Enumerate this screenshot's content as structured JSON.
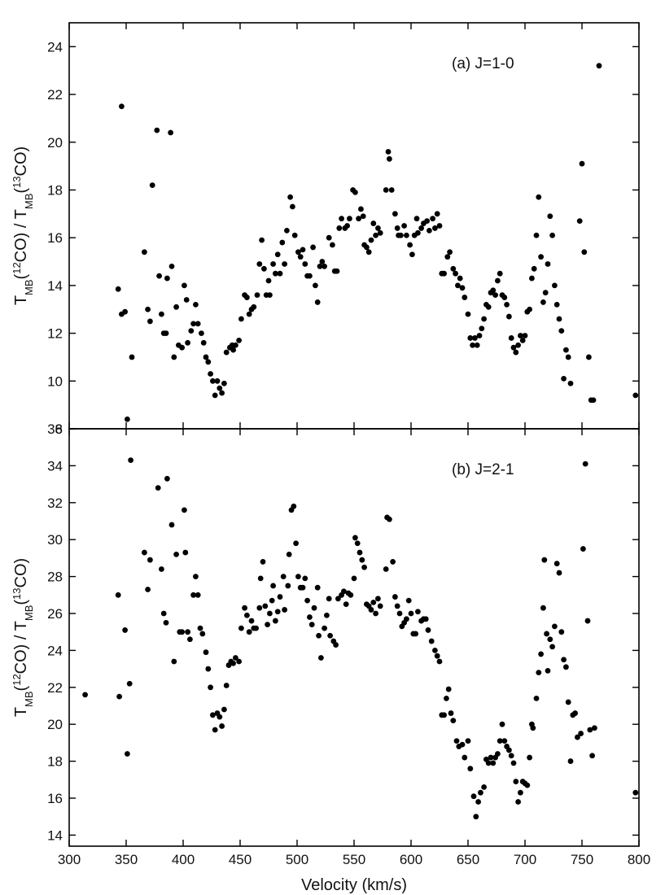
{
  "chart_data": [
    {
      "type": "scatter",
      "color": "#000000",
      "annotation": "(a) J=1-0",
      "ylabel": [
        {
          "text": "T"
        },
        {
          "text": "MB",
          "shift": "sub"
        },
        {
          "text": "("
        },
        {
          "text": "12",
          "shift": "super"
        },
        {
          "text": "CO)  /  T"
        },
        {
          "text": "MB",
          "shift": "sub"
        },
        {
          "text": "("
        },
        {
          "text": "13",
          "shift": "super"
        },
        {
          "text": "CO)"
        }
      ],
      "xlim": [
        300,
        800
      ],
      "xticks": [
        300,
        350,
        400,
        450,
        500,
        550,
        600,
        650,
        700,
        750,
        800
      ],
      "ylim": [
        8,
        25
      ],
      "yticks": [
        8,
        10,
        12,
        14,
        16,
        18,
        20,
        22,
        24
      ],
      "x": [
        343,
        346,
        346,
        349,
        351,
        355,
        366,
        369,
        371,
        373,
        377,
        379,
        381,
        383,
        385,
        386,
        389,
        390,
        392,
        394,
        396,
        399,
        401,
        403,
        404,
        407,
        409,
        411,
        413,
        416,
        418,
        420,
        422,
        424,
        426,
        428,
        430,
        432,
        434,
        436,
        438,
        441,
        443,
        444,
        446,
        449,
        451,
        454,
        456,
        458,
        460,
        462,
        465,
        467,
        469,
        471,
        473,
        475,
        476,
        479,
        481,
        483,
        485,
        487,
        489,
        491,
        494,
        496,
        498,
        501,
        503,
        505,
        507,
        509,
        511,
        514,
        516,
        518,
        520,
        522,
        524,
        528,
        531,
        533,
        535,
        537,
        539,
        542,
        544,
        546,
        549,
        551,
        554,
        556,
        558,
        559,
        561,
        563,
        565,
        567,
        569,
        571,
        573,
        578,
        580,
        581,
        583,
        586,
        588,
        589,
        591,
        594,
        596,
        599,
        601,
        603,
        605,
        606,
        609,
        611,
        614,
        616,
        619,
        621,
        623,
        625,
        627,
        629,
        632,
        634,
        637,
        639,
        641,
        643,
        645,
        647,
        650,
        652,
        654,
        656,
        658,
        660,
        662,
        664,
        666,
        668,
        670,
        672,
        674,
        676,
        678,
        680,
        682,
        684,
        686,
        688,
        690,
        692,
        694,
        696,
        698,
        700,
        702,
        704,
        706,
        708,
        710,
        712,
        714,
        716,
        718,
        720,
        722,
        724,
        726,
        728,
        730,
        732,
        734,
        736,
        738,
        740,
        748,
        750,
        752,
        756,
        758,
        760,
        765,
        797
      ],
      "y": [
        13.85,
        12.8,
        21.5,
        12.9,
        8.4,
        11.0,
        15.4,
        13.0,
        12.5,
        18.2,
        20.5,
        14.4,
        12.8,
        12.0,
        12.0,
        14.3,
        20.4,
        14.8,
        11.0,
        13.1,
        11.5,
        11.4,
        14.0,
        13.4,
        11.6,
        12.1,
        12.4,
        13.2,
        12.4,
        12.0,
        11.6,
        11.0,
        10.8,
        10.3,
        10.0,
        9.4,
        10.0,
        9.7,
        9.5,
        9.9,
        11.2,
        11.4,
        11.5,
        11.3,
        11.5,
        11.7,
        12.6,
        13.6,
        13.5,
        12.8,
        13.0,
        13.1,
        13.6,
        14.9,
        15.9,
        14.7,
        13.6,
        14.2,
        13.6,
        14.9,
        14.5,
        15.3,
        14.5,
        15.8,
        14.9,
        16.3,
        17.7,
        17.3,
        16.1,
        15.4,
        15.2,
        15.5,
        14.9,
        14.4,
        14.4,
        15.6,
        14.0,
        13.3,
        14.8,
        15.0,
        14.8,
        16.0,
        15.7,
        14.6,
        14.6,
        16.4,
        16.8,
        16.4,
        16.5,
        16.8,
        18.0,
        17.9,
        16.8,
        17.2,
        16.9,
        15.7,
        15.6,
        15.4,
        15.9,
        16.6,
        16.1,
        16.4,
        16.2,
        18.0,
        19.6,
        19.3,
        18.0,
        17.0,
        16.4,
        16.1,
        16.1,
        16.5,
        16.1,
        15.7,
        15.3,
        16.1,
        16.8,
        16.2,
        16.4,
        16.6,
        16.7,
        16.3,
        16.8,
        16.4,
        17.0,
        16.5,
        14.5,
        14.5,
        15.2,
        15.4,
        14.7,
        14.5,
        14.0,
        14.3,
        13.9,
        13.5,
        12.8,
        11.8,
        11.5,
        11.8,
        11.5,
        11.9,
        12.2,
        12.6,
        13.2,
        13.1,
        13.7,
        13.8,
        13.6,
        14.2,
        14.5,
        13.6,
        13.5,
        13.2,
        12.7,
        11.8,
        11.4,
        11.2,
        11.5,
        11.9,
        11.7,
        11.9,
        12.9,
        13.0,
        14.3,
        14.7,
        16.1,
        17.7,
        15.2,
        13.3,
        13.7,
        14.9,
        16.9,
        16.1,
        14.0,
        13.2,
        12.6,
        12.1,
        10.1,
        11.3,
        11.0,
        9.9,
        16.7,
        19.1,
        15.4,
        11.0,
        9.2,
        9.2,
        23.2,
        9.4
      ]
    },
    {
      "type": "scatter",
      "color": "#000000",
      "annotation": "(b) J=2-1",
      "xlabel": "Velocity   (km/s)",
      "ylabel": [
        {
          "text": "T"
        },
        {
          "text": "MB",
          "shift": "sub"
        },
        {
          "text": "("
        },
        {
          "text": "12",
          "shift": "super"
        },
        {
          "text": "CO)  /  T"
        },
        {
          "text": "MB",
          "shift": "sub"
        },
        {
          "text": "("
        },
        {
          "text": "13",
          "shift": "super"
        },
        {
          "text": "CO)"
        }
      ],
      "xlim": [
        300,
        800
      ],
      "xticks": [
        300,
        350,
        400,
        450,
        500,
        550,
        600,
        650,
        700,
        750,
        800
      ],
      "ylim": [
        13.4,
        36
      ],
      "yticks": [
        14,
        16,
        18,
        20,
        22,
        24,
        26,
        28,
        30,
        32,
        34,
        36
      ],
      "x": [
        314,
        343,
        344,
        349,
        351,
        353,
        354,
        366,
        369,
        371,
        378,
        381,
        383,
        385,
        386,
        390,
        392,
        394,
        397,
        399,
        401,
        402,
        404,
        406,
        409,
        411,
        413,
        415,
        417,
        420,
        422,
        424,
        426,
        428,
        430,
        432,
        434,
        436,
        438,
        440,
        442,
        444,
        446,
        449,
        451,
        454,
        456,
        458,
        460,
        462,
        464,
        467,
        468,
        470,
        472,
        474,
        476,
        478,
        479,
        481,
        483,
        485,
        488,
        489,
        492,
        493,
        495,
        497,
        499,
        501,
        503,
        505,
        507,
        509,
        511,
        513,
        515,
        518,
        519,
        521,
        524,
        526,
        528,
        529,
        532,
        534,
        536,
        539,
        541,
        543,
        545,
        547,
        550,
        551,
        553,
        555,
        557,
        559,
        561,
        563,
        565,
        567,
        569,
        571,
        573,
        578,
        579,
        581,
        584,
        586,
        588,
        590,
        592,
        594,
        596,
        598,
        600,
        602,
        604,
        606,
        609,
        611,
        613,
        615,
        618,
        621,
        623,
        625,
        627,
        629,
        631,
        633,
        635,
        637,
        640,
        642,
        645,
        647,
        650,
        652,
        655,
        657,
        659,
        661,
        664,
        666,
        668,
        670,
        672,
        674,
        676,
        678,
        680,
        682,
        684,
        686,
        688,
        690,
        692,
        694,
        696,
        698,
        700,
        702,
        704,
        706,
        707,
        710,
        712,
        714,
        716,
        717,
        719,
        720,
        722,
        724,
        726,
        728,
        730,
        732,
        734,
        736,
        738,
        740,
        742,
        744,
        746,
        749,
        751,
        753,
        755,
        757,
        759,
        761,
        797
      ],
      "y": [
        21.6,
        27.0,
        21.5,
        25.1,
        18.4,
        22.2,
        34.3,
        29.3,
        27.3,
        28.9,
        32.8,
        28.4,
        26.0,
        25.5,
        33.3,
        30.8,
        23.4,
        29.2,
        25.0,
        25.0,
        31.6,
        29.3,
        25.0,
        24.6,
        27.0,
        28.0,
        27.0,
        25.2,
        24.9,
        23.9,
        23.0,
        22.0,
        20.5,
        19.7,
        20.6,
        20.4,
        19.9,
        20.8,
        22.1,
        23.2,
        23.4,
        23.3,
        23.6,
        23.4,
        25.2,
        26.3,
        25.9,
        25.0,
        25.6,
        25.2,
        25.2,
        26.3,
        27.9,
        28.8,
        26.4,
        25.4,
        26.0,
        26.7,
        27.5,
        25.6,
        26.1,
        26.9,
        28.0,
        26.2,
        27.5,
        29.2,
        31.6,
        31.8,
        29.8,
        28.0,
        27.4,
        27.4,
        27.9,
        26.7,
        25.8,
        25.4,
        26.3,
        27.4,
        24.8,
        23.6,
        25.2,
        25.9,
        26.8,
        24.8,
        24.5,
        24.3,
        26.8,
        27.0,
        27.2,
        26.5,
        27.1,
        27.0,
        27.9,
        30.1,
        29.8,
        29.3,
        28.9,
        28.5,
        26.5,
        26.4,
        26.2,
        26.6,
        26.0,
        26.8,
        26.4,
        28.4,
        31.2,
        31.1,
        28.8,
        26.9,
        26.4,
        26.0,
        25.3,
        25.5,
        25.7,
        26.7,
        26.0,
        24.9,
        24.9,
        26.1,
        25.6,
        25.7,
        25.7,
        25.1,
        24.5,
        24.0,
        23.7,
        23.4,
        20.5,
        20.5,
        21.4,
        21.9,
        20.6,
        20.2,
        19.1,
        18.8,
        18.9,
        18.2,
        19.1,
        17.6,
        16.1,
        15.0,
        15.8,
        16.3,
        16.6,
        18.1,
        17.9,
        18.2,
        17.9,
        18.2,
        18.4,
        19.1,
        20.0,
        19.1,
        18.8,
        18.6,
        18.3,
        17.9,
        16.9,
        15.8,
        16.3,
        16.9,
        16.8,
        16.7,
        18.2,
        20.0,
        19.8,
        21.4,
        22.8,
        23.8,
        26.3,
        28.9,
        24.9,
        22.9,
        24.6,
        24.2,
        25.3,
        28.7,
        28.2,
        25.0,
        23.5,
        23.1,
        21.2,
        18.0,
        20.5,
        20.6,
        19.3,
        19.5,
        29.5,
        34.1,
        25.6,
        19.7,
        18.3,
        19.8,
        16.3
      ]
    }
  ]
}
